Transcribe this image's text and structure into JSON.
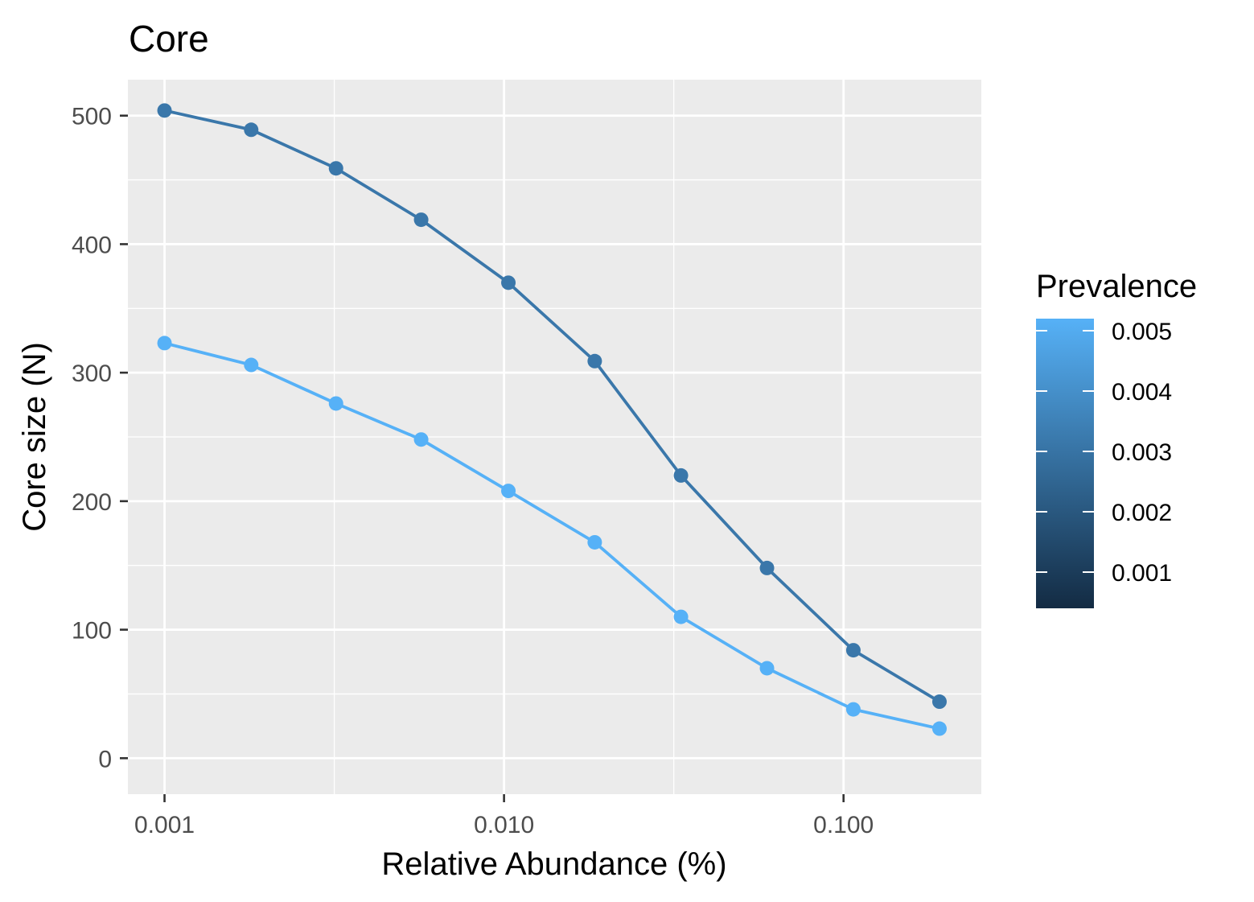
{
  "chart_data": {
    "type": "line",
    "title": "Core",
    "xlabel": "Relative Abundance (%)",
    "ylabel": "Core size (N)",
    "x_scale": "log10",
    "xlim": [
      0.00078,
      0.2546
    ],
    "ylim": [
      -28,
      528
    ],
    "x_ticks": [
      {
        "value": 0.001,
        "label": "0.001"
      },
      {
        "value": 0.01,
        "label": "0.010"
      },
      {
        "value": 0.1,
        "label": "0.100"
      }
    ],
    "y_ticks": [
      {
        "value": 0,
        "label": "0"
      },
      {
        "value": 100,
        "label": "100"
      },
      {
        "value": 200,
        "label": "200"
      },
      {
        "value": 300,
        "label": "300"
      },
      {
        "value": 400,
        "label": "400"
      },
      {
        "value": 500,
        "label": "500"
      }
    ],
    "x": [
      0.001,
      0.0018,
      0.0032,
      0.0057,
      0.0103,
      0.0185,
      0.0332,
      0.0595,
      0.1069,
      0.1917
    ],
    "series": [
      {
        "prevalence": 0.003,
        "color": "#3a77aa",
        "values": [
          504,
          489,
          459,
          419,
          370,
          309,
          220,
          148,
          84,
          44
        ]
      },
      {
        "prevalence": 0.005,
        "color": "#56b1f7",
        "values": [
          323,
          306,
          276,
          248,
          208,
          168,
          110,
          70,
          38,
          23
        ]
      }
    ],
    "grid": true,
    "panel_background": "#ebebeb",
    "legend": {
      "title": "Prevalence",
      "type": "colorbar",
      "position": "right",
      "range": [
        0.0004,
        0.0052
      ],
      "color_low": "#132b43",
      "color_high": "#56b1f7",
      "ticks": [
        {
          "value": 0.001,
          "label": "0.001"
        },
        {
          "value": 0.002,
          "label": "0.002"
        },
        {
          "value": 0.003,
          "label": "0.003"
        },
        {
          "value": 0.004,
          "label": "0.004"
        },
        {
          "value": 0.005,
          "label": "0.005"
        }
      ]
    }
  }
}
